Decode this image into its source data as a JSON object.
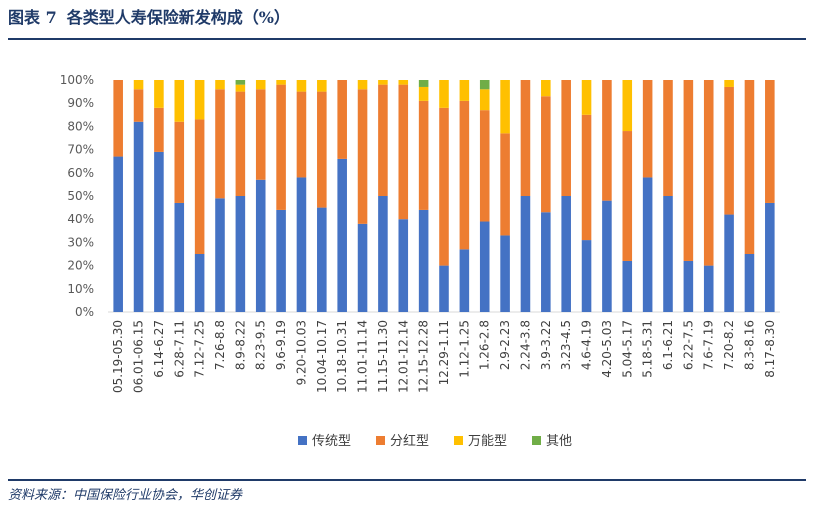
{
  "header": {
    "figure_label": "图表 7",
    "title": "各类型人寿保险新发构成（%）"
  },
  "footer": {
    "source": "资料来源：中国保险行业协会，华创证券"
  },
  "colors": {
    "传统型": "#4472c4",
    "分红型": "#ed7d31",
    "万能型": "#ffc000",
    "其他": "#70ad47",
    "accent": "#1f3a68"
  },
  "chart_data": {
    "type": "bar",
    "stacked": true,
    "ylim": [
      0,
      100
    ],
    "yticks": [
      "0%",
      "10%",
      "20%",
      "30%",
      "40%",
      "50%",
      "60%",
      "70%",
      "80%",
      "90%",
      "100%"
    ],
    "legend_position": "bottom",
    "grid": false,
    "categories": [
      "05.19-05.30",
      "06.01-06.15",
      "6.14-6.27",
      "6.28-7.11",
      "7.12-7.25",
      "7.26-8.8",
      "8.9-8.22",
      "8.23-9.5",
      "9.6-9.19",
      "9.20-10.03",
      "10.04-10.17",
      "10.18-10.31",
      "11.01-11.14",
      "11.15-11.30",
      "12.01-12.14",
      "12.15-12.28",
      "12.29-1.11",
      "1.12-1.25",
      "1.26-2.8",
      "2.9-2.23",
      "2.24-3.8",
      "3.9-3.22",
      "3.23-4.5",
      "4.6-4.19",
      "4.20-5.03",
      "5.04-5.17",
      "5.18-5.31",
      "6.1-6.21",
      "6.22-7.5",
      "7.6-7.19",
      "7.20-8.2",
      "8.3-8.16",
      "8.17-8.30"
    ],
    "series": [
      {
        "name": "传统型",
        "values": [
          67,
          82,
          69,
          47,
          25,
          49,
          50,
          57,
          44,
          58,
          45,
          66,
          38,
          50,
          40,
          44,
          20,
          27,
          39,
          33,
          50,
          43,
          50,
          31,
          48,
          22,
          58,
          50,
          22,
          20,
          42,
          25,
          47
        ]
      },
      {
        "name": "分红型",
        "values": [
          33,
          14,
          19,
          35,
          58,
          47,
          45,
          39,
          54,
          37,
          50,
          34,
          58,
          48,
          58,
          47,
          68,
          64,
          48,
          44,
          50,
          50,
          50,
          54,
          52,
          56,
          42,
          50,
          78,
          80,
          55,
          75,
          53
        ]
      },
      {
        "name": "万能型",
        "values": [
          0,
          4,
          12,
          18,
          17,
          4,
          3,
          4,
          2,
          5,
          5,
          0,
          4,
          2,
          2,
          6,
          12,
          9,
          9,
          23,
          0,
          7,
          0,
          15,
          0,
          22,
          0,
          0,
          0,
          0,
          3,
          0,
          0
        ]
      },
      {
        "name": "其他",
        "values": [
          0,
          0,
          0,
          0,
          0,
          0,
          2,
          0,
          0,
          0,
          0,
          0,
          0,
          0,
          0,
          3,
          0,
          0,
          4,
          0,
          0,
          0,
          0,
          0,
          0,
          0,
          0,
          0,
          0,
          0,
          0,
          0,
          0
        ]
      }
    ]
  }
}
